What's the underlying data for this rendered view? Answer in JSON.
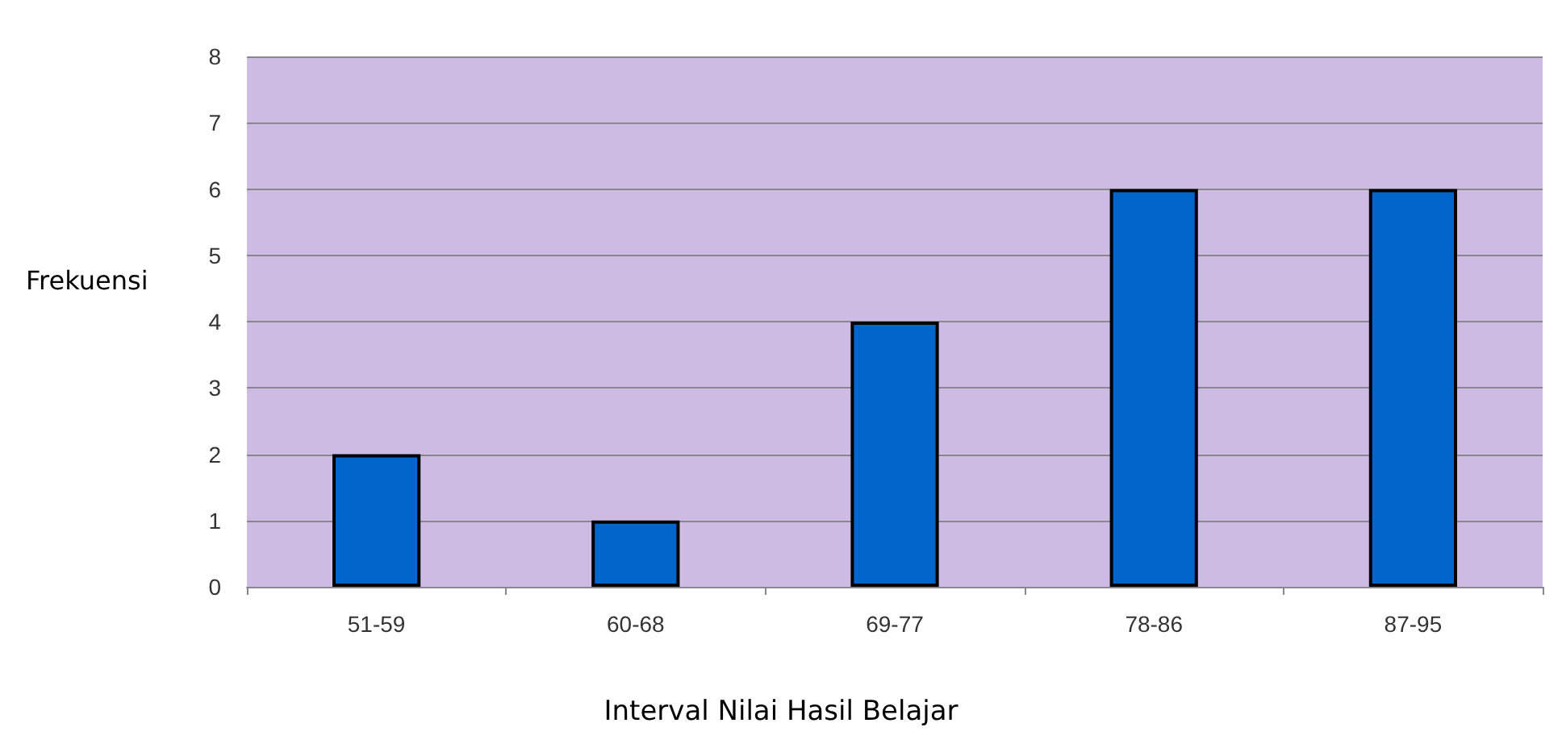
{
  "chart_data": {
    "type": "bar",
    "xlabel": "Interval Nilai Hasil Belajar",
    "ylabel": "Frekuensi",
    "categories": [
      "51-59",
      "60-68",
      "69-77",
      "78-86",
      "87-95"
    ],
    "values": [
      2,
      1,
      4,
      6,
      6
    ],
    "color": "#0066cc",
    "ylim": [
      0,
      8
    ],
    "yticks": [
      0,
      1,
      2,
      3,
      4,
      5,
      6,
      7,
      8
    ],
    "grid": "y"
  }
}
